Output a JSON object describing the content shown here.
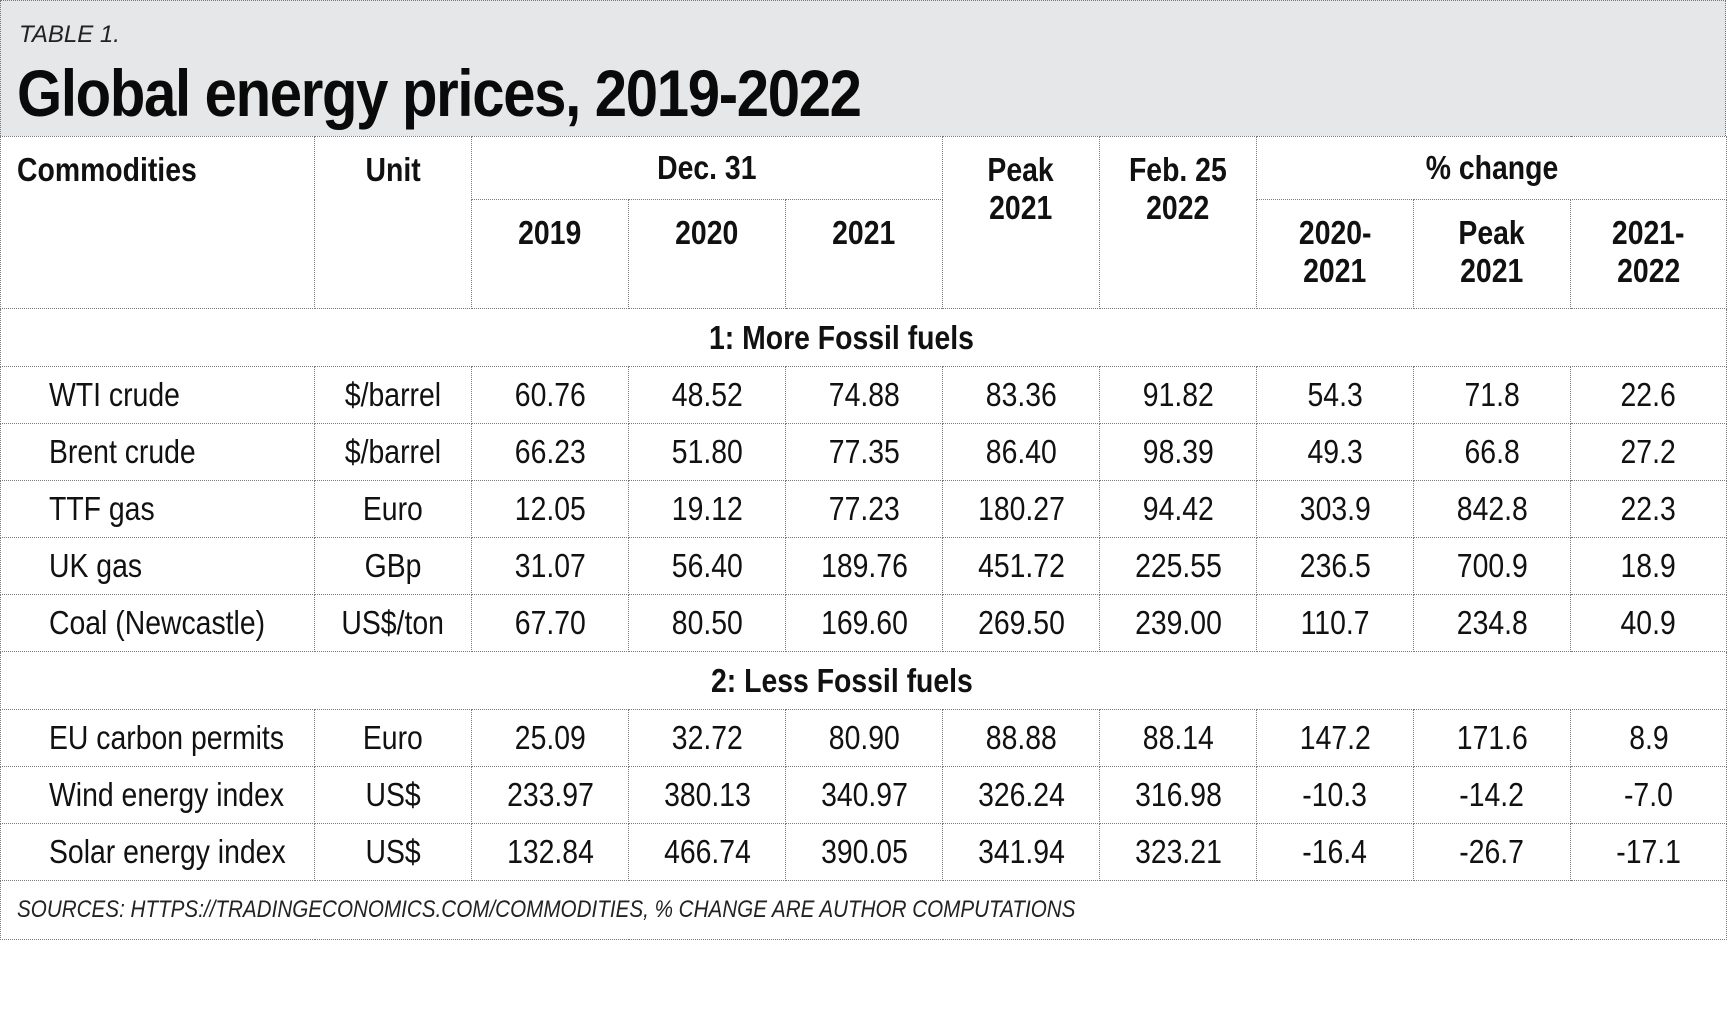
{
  "table_label": "TABLE 1.",
  "title": "Global energy prices, 2019-2022",
  "headers": {
    "commodities": "Commodities",
    "unit": "Unit",
    "dec31": "Dec. 31",
    "y2019": "2019",
    "y2020": "2020",
    "y2021": "2021",
    "peak_top": "Peak",
    "peak_bottom": "2021",
    "feb_top": "Feb. 25",
    "feb_bottom": "2022",
    "pct_change": "% change",
    "pc1_top": "2020-",
    "pc1_bottom": "2021",
    "pc2_top": "Peak",
    "pc2_bottom": "2021",
    "pc3_top": "2021-",
    "pc3_bottom": "2022"
  },
  "sections": [
    {
      "title": "1: More Fossil fuels",
      "rows": [
        {
          "name": "WTI crude",
          "unit": "$/barrel",
          "v2019": "60.76",
          "v2020": "48.52",
          "v2021": "74.88",
          "peak2021": "83.36",
          "feb2022": "91.82",
          "pc_2020_2021": "54.3",
          "pc_peak_2021": "71.8",
          "pc_2021_2022": "22.6"
        },
        {
          "name": "Brent crude",
          "unit": "$/barrel",
          "v2019": "66.23",
          "v2020": "51.80",
          "v2021": "77.35",
          "peak2021": "86.40",
          "feb2022": "98.39",
          "pc_2020_2021": "49.3",
          "pc_peak_2021": "66.8",
          "pc_2021_2022": "27.2"
        },
        {
          "name": "TTF gas",
          "unit": "Euro",
          "v2019": "12.05",
          "v2020": "19.12",
          "v2021": "77.23",
          "peak2021": "180.27",
          "feb2022": "94.42",
          "pc_2020_2021": "303.9",
          "pc_peak_2021": "842.8",
          "pc_2021_2022": "22.3"
        },
        {
          "name": "UK gas",
          "unit": "GBp",
          "v2019": "31.07",
          "v2020": "56.40",
          "v2021": "189.76",
          "peak2021": "451.72",
          "feb2022": "225.55",
          "pc_2020_2021": "236.5",
          "pc_peak_2021": "700.9",
          "pc_2021_2022": "18.9"
        },
        {
          "name": "Coal (Newcastle)",
          "unit": "US$/ton",
          "v2019": "67.70",
          "v2020": "80.50",
          "v2021": "169.60",
          "peak2021": "269.50",
          "feb2022": "239.00",
          "pc_2020_2021": "110.7",
          "pc_peak_2021": "234.8",
          "pc_2021_2022": "40.9"
        }
      ]
    },
    {
      "title": "2: Less Fossil fuels",
      "rows": [
        {
          "name": "EU carbon permits",
          "unit": "Euro",
          "v2019": "25.09",
          "v2020": "32.72",
          "v2021": "80.90",
          "peak2021": "88.88",
          "feb2022": "88.14",
          "pc_2020_2021": "147.2",
          "pc_peak_2021": "171.6",
          "pc_2021_2022": "8.9"
        },
        {
          "name": "Wind energy index",
          "unit": "US$",
          "v2019": "233.97",
          "v2020": "380.13",
          "v2021": "340.97",
          "peak2021": "326.24",
          "feb2022": "316.98",
          "pc_2020_2021": "-10.3",
          "pc_peak_2021": "-14.2",
          "pc_2021_2022": "-7.0"
        },
        {
          "name": "Solar energy index",
          "unit": "US$",
          "v2019": "132.84",
          "v2020": "466.74",
          "v2021": "390.05",
          "peak2021": "341.94",
          "feb2022": "323.21",
          "pc_2020_2021": "-16.4",
          "pc_peak_2021": "-26.7",
          "pc_2021_2022": "-17.1"
        }
      ]
    }
  ],
  "source": "SOURCES: HTTPS://TRADINGECONOMICS.COM/COMMODITIES, % CHANGE ARE AUTHOR COMPUTATIONS"
}
